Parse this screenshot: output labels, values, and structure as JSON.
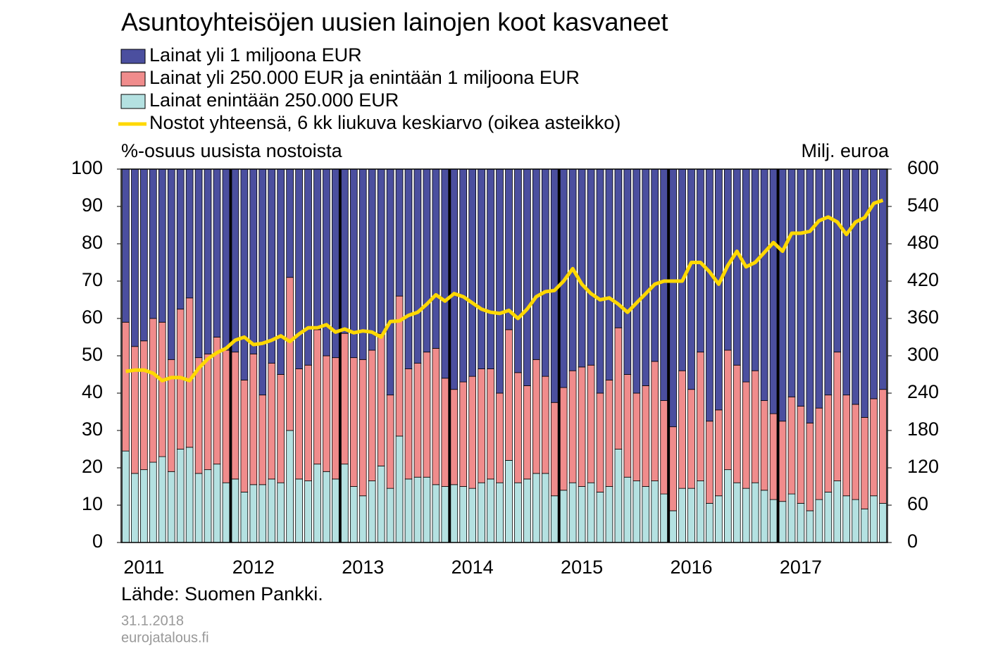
{
  "chart_data": {
    "type": "stacked_bar_line",
    "title": "Asuntoyhteisöjen uusien lainojen koot kasvaneet",
    "y_label": "%-osuus uusista nostoista",
    "y2_label": "Milj. euroa",
    "source": "Lähde: Suomen Pankki.",
    "date": "31.1.2018",
    "site": "eurojatalous.fi",
    "categories": [
      null,
      null,
      "2011",
      null,
      null,
      null,
      null,
      null,
      null,
      null,
      null,
      null,
      null,
      null,
      "2012",
      null,
      null,
      null,
      null,
      null,
      null,
      null,
      null,
      null,
      null,
      null,
      "2013",
      null,
      null,
      null,
      null,
      null,
      null,
      null,
      null,
      null,
      null,
      null,
      "2014",
      null,
      null,
      null,
      null,
      null,
      null,
      null,
      null,
      null,
      null,
      null,
      "2015",
      null,
      null,
      null,
      null,
      null,
      null,
      null,
      null,
      null,
      null,
      null,
      "2016",
      null,
      null,
      null,
      null,
      null,
      null,
      null,
      null,
      null,
      null,
      null,
      "2017",
      null,
      null,
      null,
      null,
      null,
      null,
      null,
      null,
      null
    ],
    "series": [
      {
        "name": "Lainat yli 1 miljoona EUR",
        "color": "#4b4f9f",
        "values": [
          41,
          47.5,
          46,
          40,
          41,
          51,
          37.5,
          34.5,
          50.5,
          49.5,
          45,
          48.5,
          49,
          56.5,
          49.5,
          60.5,
          52,
          55,
          29,
          53.5,
          52.5,
          43,
          50,
          50.5,
          44,
          50.5,
          51,
          48.5,
          44,
          60.5,
          34,
          53.5,
          52,
          49,
          48,
          56,
          59,
          57,
          55.5,
          53.5,
          53.5,
          60,
          43,
          54.5,
          58,
          51,
          55.5,
          62.5,
          58.5,
          54,
          53,
          52.5,
          60,
          56.5,
          42.5,
          55,
          60,
          58,
          51.5,
          62,
          69,
          54,
          59,
          49,
          67.5,
          64.5,
          48.5,
          52.5,
          57,
          54,
          62,
          65.5,
          67.5,
          61,
          63.5,
          68,
          64,
          60.5,
          49,
          60.5,
          63,
          66.5,
          61.5,
          59
        ]
      },
      {
        "name": "Lainat yli 250.000 EUR ja enintään 1 miljoona EUR",
        "color": "#f08c8c",
        "values": [
          34.5,
          34,
          34.5,
          38.5,
          36,
          30,
          37.5,
          40,
          31,
          31,
          34,
          35.5,
          34,
          30,
          35,
          24,
          31,
          29,
          41,
          29.5,
          31,
          36,
          31,
          32.5,
          35,
          34.5,
          36.5,
          35,
          35.5,
          25,
          37.5,
          29.5,
          30.5,
          33.5,
          36.5,
          29,
          25.5,
          28,
          30,
          30.5,
          29.5,
          24,
          35,
          29.5,
          25,
          30.5,
          26,
          25,
          27.5,
          30,
          32,
          31.5,
          26.5,
          28.5,
          32.5,
          27.5,
          23.5,
          27,
          32,
          25,
          22.5,
          31.5,
          26.5,
          34.5,
          22,
          23,
          32,
          31.5,
          28.5,
          30,
          24,
          23,
          21.5,
          26,
          26,
          23.5,
          24.5,
          26,
          34.5,
          27,
          25.5,
          24.5,
          26,
          30.5
        ]
      },
      {
        "name": "Lainat enintään 250.000 EUR",
        "color": "#b4e1e1",
        "values": [
          24.5,
          18.5,
          19.5,
          21.5,
          23,
          19,
          25,
          25.5,
          18.5,
          19.5,
          21,
          16,
          17,
          13.5,
          15.5,
          15.5,
          17,
          16,
          30,
          17,
          16.5,
          21,
          19,
          17,
          21,
          15,
          12.5,
          16.5,
          20.5,
          14.5,
          28.5,
          17,
          17.5,
          17.5,
          15.5,
          15,
          15.5,
          15,
          14.5,
          16,
          17,
          16,
          22,
          16,
          17,
          18.5,
          18.5,
          12.5,
          14,
          16,
          15,
          16,
          13.5,
          15,
          25,
          17.5,
          16.5,
          15,
          16.5,
          13,
          8.5,
          14.5,
          14.5,
          16.5,
          10.5,
          12.5,
          19.5,
          16,
          14.5,
          16,
          14,
          11.5,
          11,
          13,
          10.5,
          8.5,
          11.5,
          13.5,
          16.5,
          12.5,
          11.5,
          9,
          12.5,
          10.5
        ]
      },
      {
        "name": "Nostot yhteensä, 6 kk liukuva keskiarvo (oikea asteikko)",
        "color": "#ffd800",
        "axis": "y2",
        "values": [
          275,
          277,
          277,
          272,
          260,
          265,
          265,
          260,
          280,
          295,
          305,
          312,
          325,
          330,
          318,
          320,
          325,
          332,
          323,
          335,
          345,
          345,
          350,
          338,
          343,
          337,
          340,
          338,
          330,
          355,
          356,
          365,
          370,
          383,
          398,
          388,
          400,
          395,
          385,
          375,
          370,
          368,
          373,
          360,
          375,
          395,
          403,
          405,
          420,
          440,
          415,
          400,
          390,
          393,
          383,
          370,
          385,
          400,
          415,
          420,
          420,
          420,
          450,
          450,
          435,
          415,
          445,
          468,
          443,
          450,
          466,
          482,
          468,
          497,
          497,
          500,
          517,
          523,
          515,
          495,
          515,
          522,
          545,
          550
        ]
      }
    ],
    "ylim": [
      0,
      100
    ],
    "yticks": [
      0,
      10,
      20,
      30,
      40,
      50,
      60,
      70,
      80,
      90,
      100
    ],
    "y2lim": [
      0,
      600
    ],
    "y2ticks": [
      0,
      60,
      120,
      180,
      240,
      300,
      360,
      420,
      480,
      540,
      600
    ]
  }
}
